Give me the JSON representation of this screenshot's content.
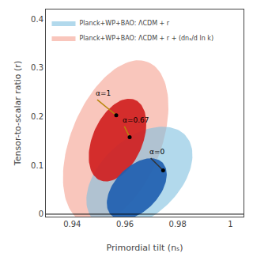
{
  "chart_data": {
    "type": "ellipse",
    "xlabel": "Primordial tilt (nₛ)",
    "ylabel": "Tensor-to-scalar ratio (r)",
    "xlim": [
      0.93,
      1.005
    ],
    "ylim": [
      -0.005,
      0.42
    ],
    "xticks": [
      0.94,
      0.96,
      0.98,
      1.0
    ],
    "yticks": [
      0.0,
      0.1,
      0.2,
      0.3,
      0.4
    ],
    "grid": false,
    "legend": "upper left",
    "hline": 0,
    "series": [
      {
        "name": "Planck+WP+BAO: ΛCDM + r",
        "color": "#7fbfdf"
      },
      {
        "name": "Planck+WP+BAO: ΛCDM + r + (dnₛ/d ln k)",
        "color": "#f5a090"
      }
    ],
    "ellipses": [
      {
        "series": "Planck+WP+BAO: ΛCDM + r + (dnₛ/d ln k)",
        "center": [
          0.9565,
          0.148
        ],
        "rx": 0.018,
        "ry": 0.168,
        "angle": -3,
        "color": "#f5a090"
      },
      {
        "series": "Planck+WP+BAO: ΛCDM + r",
        "center": [
          0.9655,
          0.075
        ],
        "rx": 0.018,
        "ry": 0.105,
        "angle": -5,
        "color": "#7fbfdf"
      },
      {
        "series": "Planck+WP+BAO: ΛCDM + r + (dnₛ/d ln k)",
        "center": [
          0.9572,
          0.152
        ],
        "rx": 0.01,
        "ry": 0.085,
        "angle": -3,
        "color": "#d02020"
      },
      {
        "series": "Planck+WP+BAO: ΛCDM + r",
        "center": [
          0.9645,
          0.052
        ],
        "rx": 0.01,
        "ry": 0.063,
        "angle": -5,
        "color": "#2060b0"
      }
    ],
    "annotations": [
      {
        "text": "α=1",
        "start": [
          0.9495,
          0.235
        ],
        "end": [
          0.9567,
          0.203
        ],
        "color": "#b8860b"
      },
      {
        "text": "α=0.67",
        "start": [
          0.9598,
          0.18
        ],
        "end": [
          0.9618,
          0.158
        ],
        "color": "#b8860b"
      },
      {
        "text": "α=0",
        "start": [
          0.9698,
          0.115
        ],
        "end": [
          0.9745,
          0.09
        ],
        "color": "#333333"
      }
    ]
  }
}
